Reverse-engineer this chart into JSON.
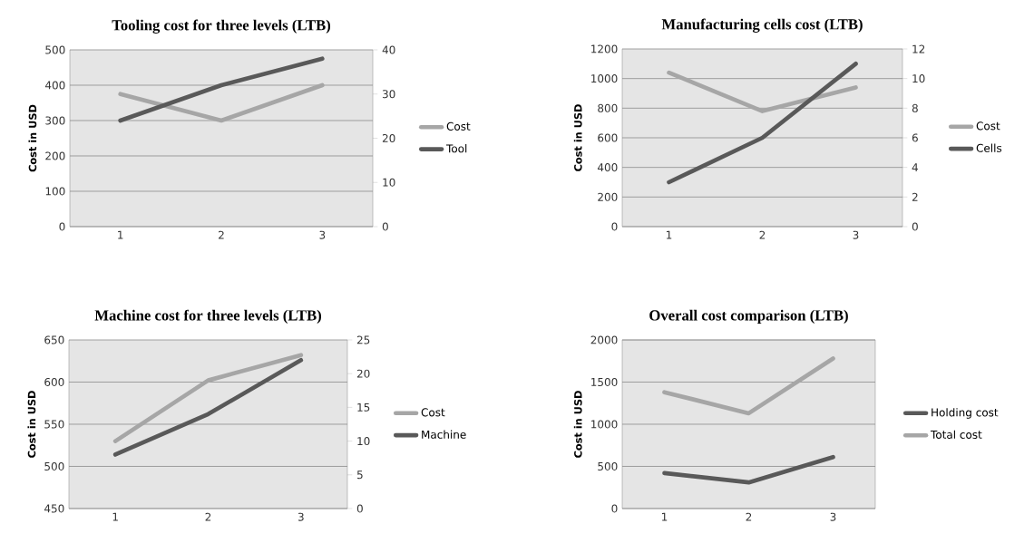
{
  "chart_data": [
    {
      "type": "line",
      "title": "Tooling cost for three levels (LTB)",
      "ylabel": "Cost in USD",
      "categories": [
        "1",
        "2",
        "3"
      ],
      "ylim": [
        0,
        500
      ],
      "yticks": [
        0,
        100,
        200,
        300,
        400,
        500
      ],
      "y2lim": [
        0,
        40
      ],
      "y2ticks": [
        0,
        10,
        20,
        30,
        40
      ],
      "grid": "y",
      "legend": "right",
      "line_style": "solid",
      "marker": "none",
      "series": [
        {
          "name": "Cost",
          "color": "#a6a6a6",
          "values": [
            375,
            300,
            400
          ]
        },
        {
          "name": "Tool",
          "color": "#595959",
          "axis": "y2",
          "values": [
            24,
            32,
            38
          ]
        }
      ]
    },
    {
      "type": "line",
      "title": "Manufacturing  cells cost (LTB)",
      "ylabel": "Cost in USD",
      "categories": [
        "1",
        "2",
        "3"
      ],
      "ylim": [
        0,
        1200
      ],
      "yticks": [
        0,
        200,
        400,
        600,
        800,
        1000,
        1200
      ],
      "y2lim": [
        0,
        12
      ],
      "y2ticks": [
        0,
        2,
        4,
        6,
        8,
        10,
        12
      ],
      "grid": "y",
      "legend": "right",
      "line_style": "solid",
      "marker": "none",
      "series": [
        {
          "name": "Cost",
          "color": "#a6a6a6",
          "values": [
            1040,
            780,
            940
          ]
        },
        {
          "name": "Cells",
          "color": "#595959",
          "axis": "y2",
          "values": [
            3,
            6,
            11
          ]
        }
      ]
    },
    {
      "type": "line",
      "title": "Machine cost for three levels (LTB)",
      "ylabel": "Cost in USD",
      "categories": [
        "1",
        "2",
        "3"
      ],
      "ylim": [
        450,
        650
      ],
      "yticks": [
        450,
        500,
        550,
        600,
        650
      ],
      "y2lim": [
        0,
        25
      ],
      "y2ticks": [
        0,
        5,
        10,
        15,
        20,
        25
      ],
      "grid": "y",
      "legend": "right",
      "line_style": "solid",
      "marker": "none",
      "series": [
        {
          "name": "Cost",
          "color": "#a6a6a6",
          "values": [
            530,
            602,
            632
          ]
        },
        {
          "name": "Machine",
          "color": "#595959",
          "axis": "y2",
          "values": [
            8,
            14,
            22
          ]
        }
      ]
    },
    {
      "type": "line",
      "title": "Overall cost comparison  (LTB)",
      "ylabel": "Cost in USD",
      "categories": [
        "1",
        "2",
        "3"
      ],
      "ylim": [
        0,
        2000
      ],
      "yticks": [
        0,
        500,
        1000,
        1500,
        2000
      ],
      "grid": "y",
      "legend": "right",
      "line_style": "solid",
      "marker": "none",
      "series": [
        {
          "name": "Holding cost",
          "color": "#595959",
          "values": [
            420,
            310,
            610
          ]
        },
        {
          "name": "Total cost",
          "color": "#a6a6a6",
          "values": [
            1380,
            1130,
            1780
          ]
        }
      ]
    }
  ]
}
